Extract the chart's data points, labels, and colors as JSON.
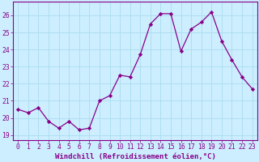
{
  "x": [
    0,
    1,
    2,
    3,
    4,
    5,
    6,
    7,
    8,
    9,
    10,
    11,
    12,
    13,
    14,
    15,
    16,
    17,
    18,
    19,
    20,
    21,
    22,
    23
  ],
  "y": [
    20.5,
    20.3,
    20.6,
    19.8,
    19.4,
    19.8,
    19.3,
    19.4,
    21.0,
    21.3,
    22.5,
    22.4,
    23.7,
    25.5,
    26.1,
    26.1,
    23.9,
    25.2,
    25.6,
    26.2,
    24.5,
    23.4,
    22.4,
    21.7
  ],
  "line_color": "#880088",
  "marker": "D",
  "marker_size": 2.2,
  "bg_color": "#cceeff",
  "grid_color": "#aaddee",
  "xlabel": "Windchill (Refroidissement éolien,°C)",
  "ylim": [
    18.7,
    26.8
  ],
  "xlim": [
    -0.5,
    23.5
  ],
  "yticks": [
    19,
    20,
    21,
    22,
    23,
    24,
    25,
    26
  ],
  "xticks": [
    0,
    1,
    2,
    3,
    4,
    5,
    6,
    7,
    8,
    9,
    10,
    11,
    12,
    13,
    14,
    15,
    16,
    17,
    18,
    19,
    20,
    21,
    22,
    23
  ],
  "tick_color": "#880088",
  "xlabel_fontsize": 6.5,
  "tick_fontsize": 5.8,
  "spine_color": "#880088"
}
